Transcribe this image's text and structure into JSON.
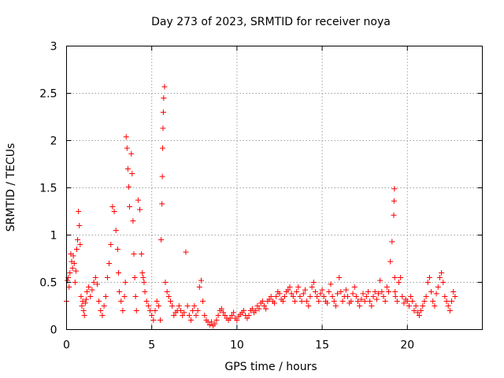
{
  "chart_data": {
    "type": "scatter",
    "title": "Day 273 of 2023, SRMTID for receiver noya",
    "xlabel": "GPS time / hours",
    "ylabel": "SRMTID / TECUs",
    "xlim": [
      0,
      24.4
    ],
    "ylim": [
      0,
      3
    ],
    "xticks": [
      0,
      5,
      10,
      15,
      20
    ],
    "xtick_labels": [
      "0",
      "5",
      "10",
      "15",
      "20"
    ],
    "yticks": [
      0,
      0.5,
      1,
      1.5,
      2,
      2.5,
      3
    ],
    "ytick_labels": [
      "0",
      "0.5",
      "1",
      "1.5",
      "2",
      "2.5",
      "3"
    ],
    "grid": true,
    "marker": "+",
    "color": "#ff0000",
    "series": [
      {
        "name": "noya",
        "x": [
          0.0,
          0.05,
          0.1,
          0.15,
          0.2,
          0.25,
          0.3,
          0.35,
          0.4,
          0.45,
          0.5,
          0.55,
          0.6,
          0.65,
          0.7,
          0.75,
          0.8,
          0.85,
          0.9,
          0.95,
          1.0,
          1.05,
          1.1,
          1.15,
          1.2,
          1.3,
          1.4,
          1.5,
          1.6,
          1.7,
          1.8,
          1.9,
          2.0,
          2.1,
          2.2,
          2.3,
          2.4,
          2.5,
          2.6,
          2.7,
          2.8,
          2.9,
          3.0,
          3.05,
          3.1,
          3.2,
          3.3,
          3.4,
          3.45,
          3.5,
          3.55,
          3.6,
          3.65,
          3.7,
          3.8,
          3.85,
          3.9,
          3.95,
          4.0,
          4.05,
          4.1,
          4.2,
          4.3,
          4.4,
          4.45,
          4.5,
          4.55,
          4.6,
          4.7,
          4.8,
          4.9,
          5.0,
          5.1,
          5.2,
          5.3,
          5.4,
          5.5,
          5.55,
          5.6,
          5.62,
          5.64,
          5.66,
          5.68,
          5.7,
          5.75,
          5.8,
          5.9,
          6.0,
          6.1,
          6.2,
          6.3,
          6.4,
          6.5,
          6.6,
          6.7,
          6.8,
          6.9,
          7.0,
          7.1,
          7.2,
          7.3,
          7.4,
          7.5,
          7.6,
          7.7,
          7.8,
          7.9,
          8.0,
          8.1,
          8.2,
          8.3,
          8.4,
          8.5,
          8.6,
          8.7,
          8.8,
          8.9,
          9.0,
          9.1,
          9.2,
          9.3,
          9.4,
          9.5,
          9.6,
          9.7,
          9.8,
          9.9,
          10.0,
          10.1,
          10.2,
          10.3,
          10.4,
          10.5,
          10.6,
          10.7,
          10.8,
          10.9,
          11.0,
          11.1,
          11.2,
          11.3,
          11.4,
          11.5,
          11.6,
          11.7,
          11.8,
          11.9,
          12.0,
          12.1,
          12.2,
          12.3,
          12.4,
          12.5,
          12.6,
          12.7,
          12.8,
          12.9,
          13.0,
          13.1,
          13.2,
          13.3,
          13.4,
          13.5,
          13.6,
          13.7,
          13.8,
          13.9,
          14.0,
          14.1,
          14.2,
          14.3,
          14.4,
          14.5,
          14.6,
          14.7,
          14.8,
          14.9,
          15.0,
          15.1,
          15.2,
          15.3,
          15.4,
          15.5,
          15.6,
          15.7,
          15.8,
          15.9,
          16.0,
          16.1,
          16.2,
          16.3,
          16.4,
          16.5,
          16.6,
          16.7,
          16.8,
          16.9,
          17.0,
          17.1,
          17.2,
          17.3,
          17.4,
          17.5,
          17.6,
          17.7,
          17.8,
          17.9,
          18.0,
          18.1,
          18.2,
          18.3,
          18.4,
          18.5,
          18.6,
          18.7,
          18.8,
          18.9,
          19.0,
          19.1,
          19.2,
          19.22,
          19.24,
          19.26,
          19.28,
          19.3,
          19.4,
          19.5,
          19.6,
          19.7,
          19.8,
          19.9,
          20.0,
          20.1,
          20.2,
          20.3,
          20.4,
          20.5,
          20.6,
          20.7,
          20.8,
          20.9,
          21.0,
          21.1,
          21.2,
          21.3,
          21.4,
          21.5,
          21.6,
          21.7,
          21.8,
          21.9,
          22.0,
          22.1,
          22.2,
          22.3,
          22.4,
          22.5,
          22.6,
          22.7,
          22.8
        ],
        "y": [
          0.3,
          0.52,
          0.55,
          0.45,
          0.6,
          0.8,
          0.72,
          0.65,
          0.78,
          0.7,
          0.5,
          0.62,
          0.85,
          0.95,
          1.25,
          1.1,
          0.9,
          0.35,
          0.25,
          0.3,
          0.2,
          0.15,
          0.28,
          0.32,
          0.4,
          0.45,
          0.35,
          0.42,
          0.5,
          0.55,
          0.48,
          0.3,
          0.2,
          0.15,
          0.25,
          0.35,
          0.55,
          0.7,
          0.9,
          1.3,
          1.25,
          1.05,
          0.85,
          0.6,
          0.4,
          0.3,
          0.2,
          0.35,
          0.5,
          2.04,
          1.92,
          1.7,
          1.51,
          1.3,
          1.86,
          1.65,
          1.15,
          0.8,
          0.55,
          0.35,
          0.2,
          1.37,
          1.27,
          0.8,
          0.6,
          0.55,
          0.5,
          0.4,
          0.3,
          0.25,
          0.2,
          0.15,
          0.1,
          0.2,
          0.3,
          0.25,
          0.1,
          0.95,
          1.33,
          1.62,
          1.92,
          2.13,
          2.3,
          2.45,
          2.57,
          0.5,
          0.4,
          0.35,
          0.3,
          0.25,
          0.15,
          0.18,
          0.2,
          0.25,
          0.2,
          0.15,
          0.18,
          0.82,
          0.25,
          0.15,
          0.1,
          0.2,
          0.25,
          0.15,
          0.2,
          0.45,
          0.52,
          0.3,
          0.15,
          0.1,
          0.08,
          0.05,
          0.08,
          0.04,
          0.06,
          0.1,
          0.15,
          0.2,
          0.22,
          0.18,
          0.15,
          0.12,
          0.1,
          0.12,
          0.15,
          0.18,
          0.12,
          0.1,
          0.14,
          0.16,
          0.18,
          0.2,
          0.15,
          0.12,
          0.15,
          0.2,
          0.22,
          0.18,
          0.2,
          0.25,
          0.22,
          0.28,
          0.3,
          0.25,
          0.22,
          0.3,
          0.32,
          0.35,
          0.3,
          0.28,
          0.35,
          0.4,
          0.38,
          0.32,
          0.3,
          0.35,
          0.4,
          0.42,
          0.45,
          0.38,
          0.35,
          0.3,
          0.4,
          0.45,
          0.35,
          0.3,
          0.38,
          0.42,
          0.3,
          0.25,
          0.35,
          0.45,
          0.5,
          0.4,
          0.35,
          0.3,
          0.38,
          0.42,
          0.35,
          0.3,
          0.28,
          0.4,
          0.48,
          0.35,
          0.3,
          0.25,
          0.38,
          0.55,
          0.4,
          0.3,
          0.35,
          0.42,
          0.35,
          0.28,
          0.3,
          0.38,
          0.45,
          0.35,
          0.3,
          0.25,
          0.32,
          0.38,
          0.3,
          0.35,
          0.4,
          0.3,
          0.25,
          0.35,
          0.4,
          0.32,
          0.38,
          0.52,
          0.4,
          0.35,
          0.3,
          0.45,
          0.4,
          0.72,
          0.93,
          1.21,
          1.36,
          1.49,
          0.55,
          0.4,
          0.35,
          0.3,
          0.5,
          0.55,
          0.35,
          0.28,
          0.32,
          0.3,
          0.25,
          0.35,
          0.3,
          0.2,
          0.25,
          0.18,
          0.15,
          0.2,
          0.25,
          0.3,
          0.35,
          0.5,
          0.55,
          0.4,
          0.3,
          0.25,
          0.38,
          0.45,
          0.55,
          0.6,
          0.5,
          0.35,
          0.3,
          0.25,
          0.2,
          0.3,
          0.4,
          0.35
        ]
      }
    ]
  }
}
